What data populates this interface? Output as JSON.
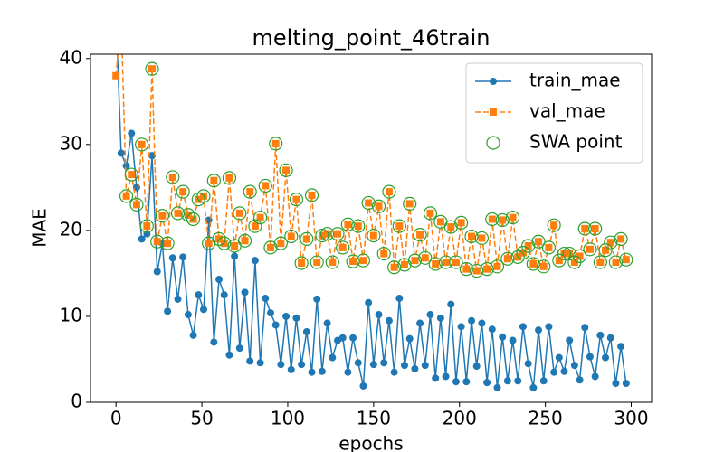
{
  "chart_data": {
    "type": "line",
    "title": "melting_point_46train",
    "x_label": "epochs",
    "y_label": "MAE",
    "xlim": [
      -14.85,
      311.85
    ],
    "xticks": [
      0,
      50,
      100,
      150,
      200,
      250,
      300
    ],
    "ylim": [
      0,
      40.5
    ],
    "yticks": [
      0,
      10,
      20,
      30,
      40
    ],
    "grid": false,
    "legend": "upper right",
    "x": [
      0,
      3,
      6,
      9,
      12,
      15,
      18,
      21,
      24,
      27,
      30,
      33,
      36,
      39,
      42,
      45,
      48,
      51,
      54,
      57,
      60,
      63,
      66,
      69,
      72,
      75,
      78,
      81,
      84,
      87,
      90,
      93,
      96,
      99,
      102,
      105,
      108,
      111,
      114,
      117,
      120,
      123,
      126,
      129,
      132,
      135,
      138,
      141,
      144,
      147,
      150,
      153,
      156,
      159,
      162,
      165,
      168,
      171,
      174,
      177,
      180,
      183,
      186,
      189,
      192,
      195,
      198,
      201,
      204,
      207,
      210,
      213,
      216,
      219,
      222,
      225,
      228,
      231,
      234,
      237,
      240,
      243,
      246,
      249,
      252,
      255,
      258,
      261,
      264,
      267,
      270,
      273,
      276,
      279,
      282,
      285,
      288,
      291,
      294,
      297
    ],
    "series": [
      {
        "name": "train_mae",
        "color": "#1f77b4",
        "style": "solid",
        "marker": "circle",
        "values": [
          45,
          29,
          27.5,
          31.3,
          25,
          19,
          19.6,
          28.7,
          15.2,
          18.5,
          10.6,
          16.8,
          12,
          16.9,
          10.2,
          7.8,
          12.5,
          10.8,
          21.2,
          7,
          14.3,
          12.5,
          5.5,
          17,
          6.3,
          12.8,
          4.8,
          16.5,
          4.6,
          12.1,
          10.4,
          9,
          4.4,
          10,
          3.8,
          9.8,
          4.4,
          8.2,
          3.5,
          12,
          3.6,
          9.2,
          5.2,
          7.2,
          7.5,
          3.5,
          7.5,
          4.6,
          1.9,
          11.6,
          4.4,
          10.2,
          4.6,
          9.5,
          3.5,
          12.1,
          4.3,
          7.4,
          3.9,
          9.2,
          4.3,
          10.2,
          2.8,
          9.8,
          3,
          11.4,
          2.4,
          8.8,
          2.4,
          9.5,
          4.2,
          9.2,
          2.3,
          8.5,
          1.7,
          7.6,
          2.5,
          7.2,
          2.5,
          8.8,
          4.5,
          1.7,
          8.4,
          2.5,
          8.8,
          3.5,
          5.2,
          3.6,
          7.2,
          4.3,
          2.6,
          8.7,
          5.3,
          3,
          7.8,
          5.2,
          7.5,
          2.2,
          6.5,
          2.2
        ]
      },
      {
        "name": "val_mae",
        "color": "#ff7f0e",
        "style": "dashed",
        "marker": "square",
        "values": [
          38,
          45,
          24,
          26.5,
          23,
          30,
          20.5,
          38.8,
          18.7,
          21.7,
          18.5,
          26.2,
          22,
          24.5,
          21.8,
          21.3,
          23.6,
          24,
          18.5,
          25.8,
          19,
          18.5,
          26.1,
          18.2,
          22,
          18.8,
          24.5,
          20.5,
          21.5,
          25.2,
          18,
          30.1,
          18.5,
          27,
          19.3,
          23.6,
          16.2,
          19,
          24.1,
          16.3,
          19.4,
          19.6,
          16.3,
          19.6,
          18,
          20.7,
          16.4,
          20.5,
          16.5,
          23.2,
          19.4,
          22.8,
          17.3,
          24.5,
          15.7,
          20.5,
          16,
          23.1,
          16.5,
          19.5,
          16.8,
          22,
          16.1,
          21,
          16.3,
          20.4,
          16.3,
          20.9,
          15.5,
          19.3,
          15.3,
          19.1,
          15.5,
          21.3,
          15.8,
          21.2,
          16.7,
          21.5,
          16.9,
          17.4,
          18.2,
          16.1,
          18.7,
          15.8,
          18,
          20.6,
          16.5,
          17.3,
          17.3,
          16.3,
          17,
          20.2,
          17.8,
          20.2,
          16.3,
          17.7,
          18.6,
          16.3,
          19,
          16.6
        ]
      },
      {
        "name": "SWA point",
        "color": "#2ca02c",
        "style": "none",
        "marker": "hollow-circle",
        "x": [
          6,
          9,
          12,
          15,
          18,
          21,
          24,
          27,
          30,
          33,
          36,
          39,
          42,
          45,
          48,
          51,
          54,
          57,
          60,
          63,
          66,
          69,
          72,
          75,
          78,
          81,
          84,
          87,
          90,
          93,
          96,
          99,
          102,
          105,
          108,
          111,
          114,
          117,
          120,
          123,
          126,
          129,
          132,
          135,
          138,
          141,
          144,
          147,
          150,
          153,
          156,
          159,
          162,
          165,
          168,
          171,
          174,
          177,
          180,
          183,
          186,
          189,
          192,
          195,
          198,
          201,
          204,
          207,
          210,
          213,
          216,
          219,
          222,
          225,
          228,
          231,
          234,
          237,
          240,
          243,
          246,
          249,
          252,
          255,
          258,
          261,
          264,
          267,
          270,
          273,
          276,
          279,
          282,
          285,
          288,
          291,
          294,
          297
        ],
        "values": [
          24,
          26.5,
          23,
          30,
          20.5,
          38.8,
          18.7,
          21.7,
          18.5,
          26.2,
          22,
          24.5,
          21.8,
          21.3,
          23.6,
          24,
          18.5,
          25.8,
          19,
          18.5,
          26.1,
          18.2,
          22,
          18.8,
          24.5,
          20.5,
          21.5,
          25.2,
          18,
          30.1,
          18.5,
          27,
          19.3,
          23.6,
          16.2,
          19,
          24.1,
          16.3,
          19.4,
          19.6,
          16.3,
          19.6,
          18,
          20.7,
          16.4,
          20.5,
          16.5,
          23.2,
          19.4,
          22.8,
          17.3,
          24.5,
          15.7,
          20.5,
          16,
          23.1,
          16.5,
          19.5,
          16.8,
          22,
          16.1,
          21,
          16.3,
          20.4,
          16.3,
          20.9,
          15.5,
          19.3,
          15.3,
          19.1,
          15.5,
          21.3,
          15.8,
          21.2,
          16.7,
          21.5,
          16.9,
          17.4,
          18.2,
          16.1,
          18.7,
          15.8,
          18,
          20.6,
          16.5,
          17.3,
          17.3,
          16.3,
          17,
          20.2,
          17.8,
          20.2,
          16.3,
          17.7,
          18.6,
          16.3,
          19,
          16.6
        ]
      }
    ]
  }
}
